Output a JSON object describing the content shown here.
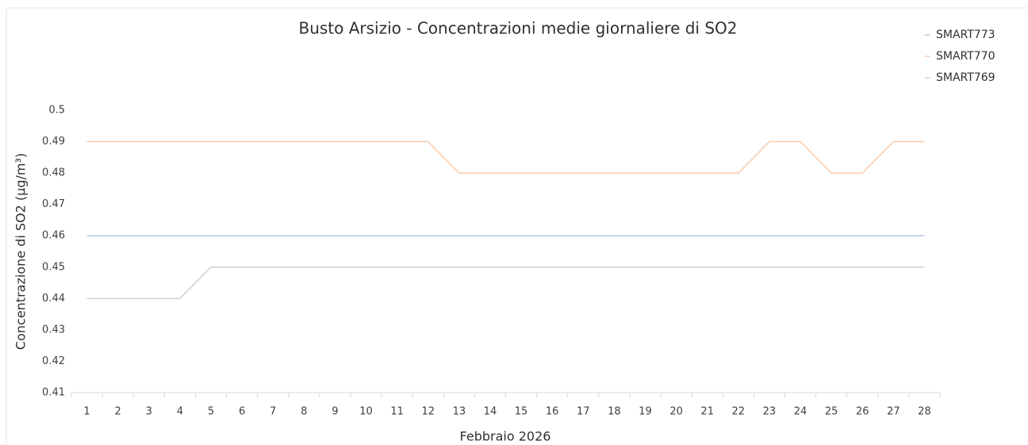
{
  "chart_data": {
    "type": "line",
    "title": "Busto Arsizio - Concentrazioni medie giornaliere di SO2",
    "x_label": "Febbraio 2026",
    "y_label": "Concentrazione di SO2 (µg/m³)",
    "categories": [
      "1",
      "2",
      "3",
      "4",
      "5",
      "6",
      "7",
      "8",
      "9",
      "10",
      "11",
      "12",
      "13",
      "14",
      "15",
      "16",
      "17",
      "18",
      "19",
      "20",
      "21",
      "22",
      "23",
      "24",
      "25",
      "26",
      "27",
      "28"
    ],
    "series": [
      {
        "name": "SMART773",
        "color": "#b4c7e7",
        "values": [
          0.46,
          0.46,
          0.46,
          0.46,
          0.46,
          0.46,
          0.46,
          0.46,
          0.46,
          0.46,
          0.46,
          0.46,
          0.46,
          0.46,
          0.46,
          0.46,
          0.46,
          0.46,
          0.46,
          0.46,
          0.46,
          0.46,
          0.46,
          0.46,
          0.46,
          0.46,
          0.46,
          0.46
        ]
      },
      {
        "name": "SMART770",
        "color": "#f8cbad",
        "values": [
          0.49,
          0.49,
          0.49,
          0.49,
          0.49,
          0.49,
          0.49,
          0.49,
          0.49,
          0.49,
          0.49,
          0.49,
          0.48,
          0.48,
          0.48,
          0.48,
          0.48,
          0.48,
          0.48,
          0.48,
          0.48,
          0.48,
          0.49,
          0.49,
          0.48,
          0.48,
          0.49,
          0.49
        ]
      },
      {
        "name": "SMART769",
        "color": "#d0d0d0",
        "values": [
          0.44,
          0.44,
          0.44,
          0.44,
          0.45,
          0.45,
          0.45,
          0.45,
          0.45,
          0.45,
          0.45,
          0.45,
          0.45,
          0.45,
          0.45,
          0.45,
          0.45,
          0.45,
          0.45,
          0.45,
          0.45,
          0.45,
          0.45,
          0.45,
          0.45,
          0.45,
          0.45,
          0.45
        ]
      }
    ],
    "ylim": [
      0.41,
      0.5
    ],
    "yticks": [
      0.41,
      0.42,
      0.43,
      0.44,
      0.45,
      0.46,
      0.47,
      0.48,
      0.49,
      0.5
    ],
    "grid": false,
    "legend": "top-right"
  }
}
